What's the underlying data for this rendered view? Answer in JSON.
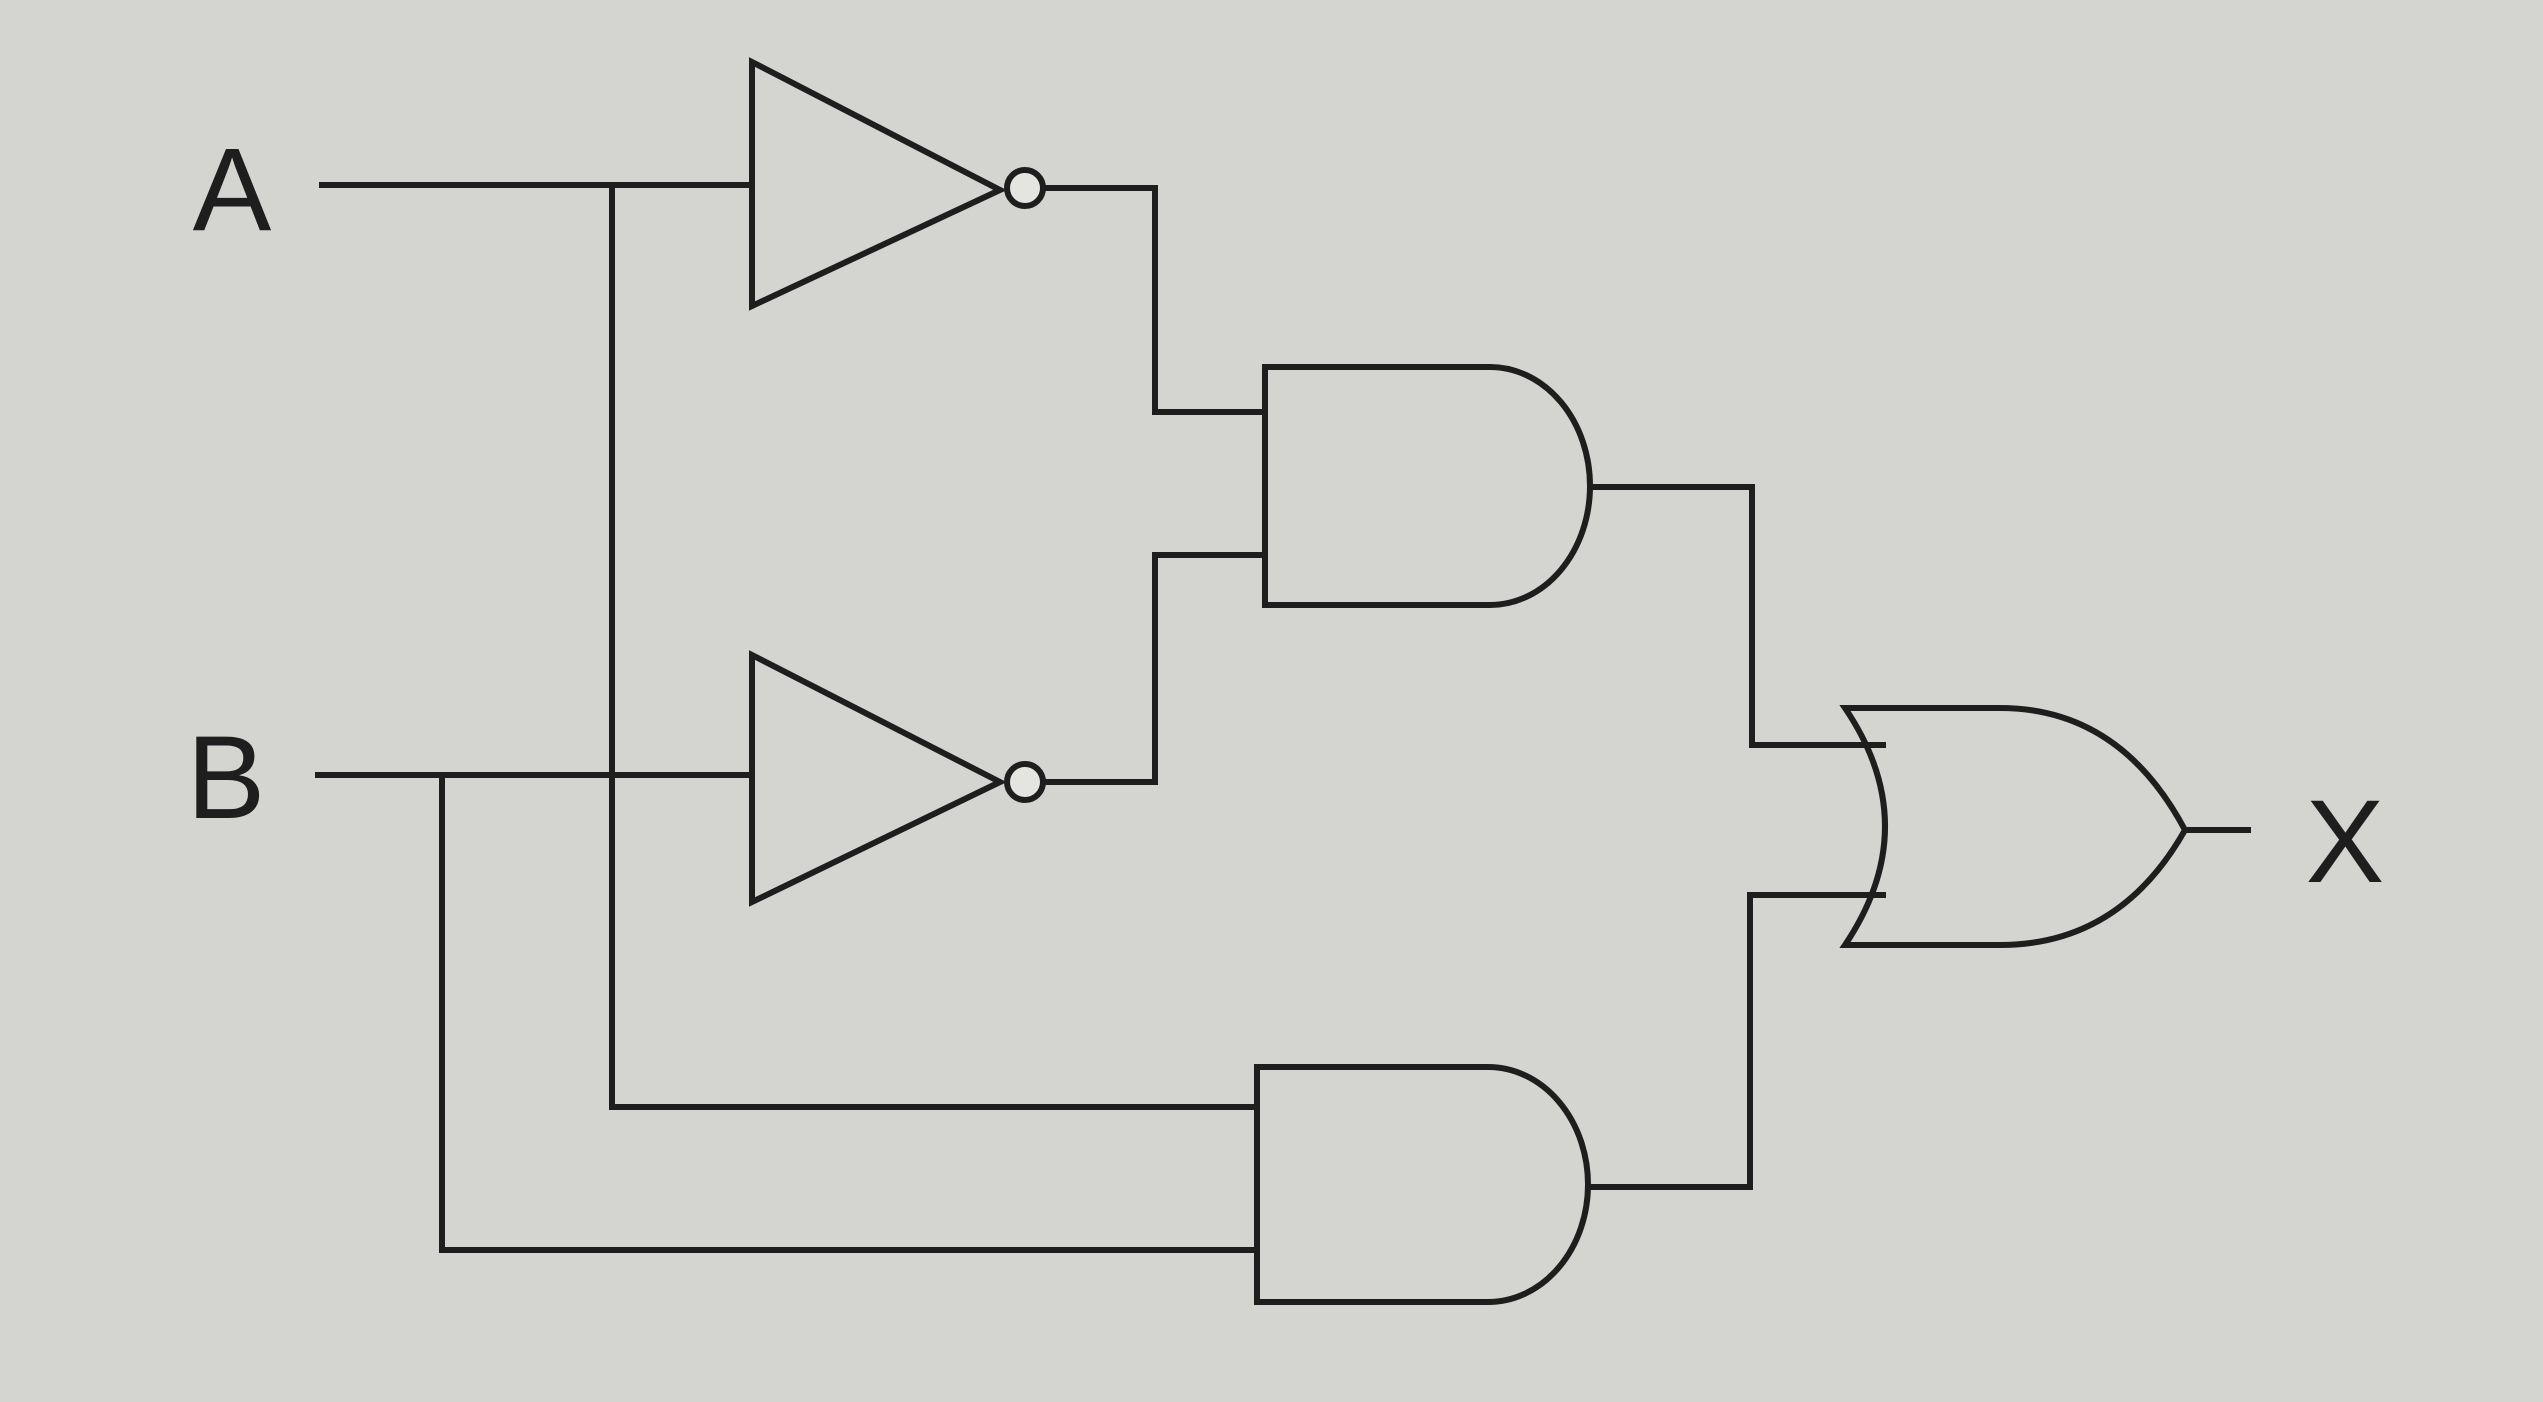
{
  "diagram": {
    "type": "logic-circuit",
    "inputs": [
      "A",
      "B"
    ],
    "output": "X",
    "gates": [
      {
        "id": "not_a",
        "kind": "NOT",
        "in": [
          "A"
        ]
      },
      {
        "id": "not_b",
        "kind": "NOT",
        "in": [
          "B"
        ]
      },
      {
        "id": "and_1",
        "kind": "AND",
        "in": [
          "not_a",
          "not_b"
        ]
      },
      {
        "id": "and_2",
        "kind": "AND",
        "in": [
          "A",
          "B"
        ]
      },
      {
        "id": "or_1",
        "kind": "OR",
        "in": [
          "and_1",
          "and_2"
        ],
        "out": "X"
      }
    ],
    "colors": {
      "background": "#d4d4d0",
      "stroke": "#1e1e1e"
    }
  }
}
